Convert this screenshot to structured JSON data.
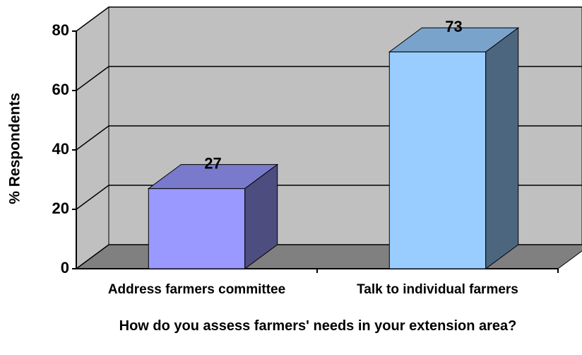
{
  "chart_data": {
    "type": "bar3d",
    "x_label": "How do you assess farmers' needs in your extension area?",
    "y_label": "% Respondents",
    "categories": [
      "Address farmers committee",
      "Talk to individual farmers"
    ],
    "values": [
      27,
      73
    ],
    "colors": [
      "#9999ff",
      "#99ccff"
    ],
    "ylim": [
      0,
      80
    ],
    "yticks": [
      0,
      20,
      40,
      60,
      80
    ],
    "grid": true
  }
}
